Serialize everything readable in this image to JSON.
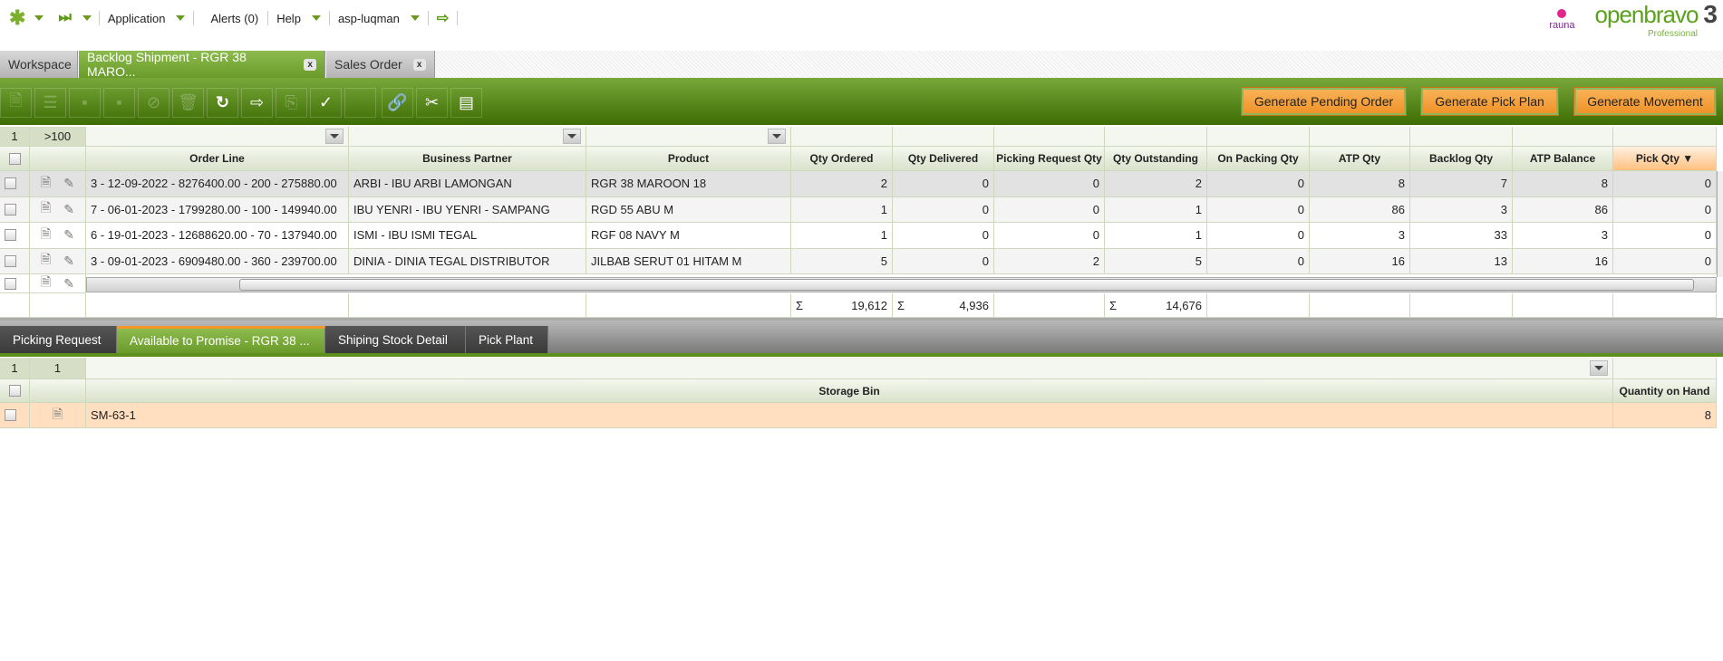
{
  "nav": {
    "items": [
      "Application",
      "Alerts (0)",
      "Help",
      "asp-luqman"
    ],
    "icons": [
      "quick-create-icon",
      "quick-launch-icon",
      "logout-icon"
    ]
  },
  "logo": {
    "brand": "openbravo",
    "edition": "Professional",
    "version": "3",
    "client": "rauna"
  },
  "tabs": [
    {
      "label": "Workspace"
    },
    {
      "label": "Backlog Shipment - RGR 38 MARO...",
      "active": true
    },
    {
      "label": "Sales Order"
    }
  ],
  "toolbar": {
    "buttons": [
      "Generate Pending Order",
      "Generate Pick Plan",
      "Generate Movement"
    ]
  },
  "grid": {
    "count_label": "1",
    "total_label": ">100",
    "columns": [
      "Order Line",
      "Business Partner",
      "Product",
      "Qty Ordered",
      "Qty Delivered",
      "Picking Request Qty",
      "Qty Outstanding",
      "On Packing Qty",
      "ATP Qty",
      "Backlog Qty",
      "ATP Balance",
      "Pick Qty ▼"
    ],
    "rows": [
      [
        "3 - 12-09-2022 - 8276400.00 - 200 - 275880.00",
        "ARBI - IBU ARBI LAMONGAN",
        "RGR 38 MAROON 18",
        "2",
        "0",
        "0",
        "2",
        "0",
        "8",
        "7",
        "8",
        "0"
      ],
      [
        "7 - 06-01-2023 - 1799280.00 - 100 - 149940.00",
        "IBU YENRI - IBU YENRI - SAMPANG",
        "RGD 55 ABU M",
        "1",
        "0",
        "0",
        "1",
        "0",
        "86",
        "3",
        "86",
        "0"
      ],
      [
        "6 - 19-01-2023 - 12688620.00 - 70 - 137940.00",
        "ISMI - IBU ISMI TEGAL",
        "RGF 08 NAVY M",
        "1",
        "0",
        "0",
        "1",
        "0",
        "3",
        "33",
        "3",
        "0"
      ],
      [
        "3 - 09-01-2023 - 6909480.00 - 360 - 239700.00",
        "DINIA - DINIA TEGAL DISTRIBUTOR",
        "JILBAB SERUT 01 HITAM M",
        "5",
        "0",
        "2",
        "5",
        "0",
        "16",
        "13",
        "16",
        "0"
      ]
    ],
    "summary": {
      "sigma": "Σ",
      "qty_ordered": "19,612",
      "qty_delivered": "4,936",
      "qty_outstanding": "14,676"
    }
  },
  "subtabs": [
    {
      "label": "Picking Request"
    },
    {
      "label": "Available to Promise - RGR 38 ...",
      "active": true
    },
    {
      "label": "Shiping Stock Detail"
    },
    {
      "label": "Pick Plant"
    }
  ],
  "subgrid": {
    "count_label": "1",
    "total_label": "1",
    "columns": [
      "Storage Bin",
      "Quantity on Hand"
    ],
    "rows": [
      [
        "SM-63-1",
        "8"
      ]
    ]
  }
}
